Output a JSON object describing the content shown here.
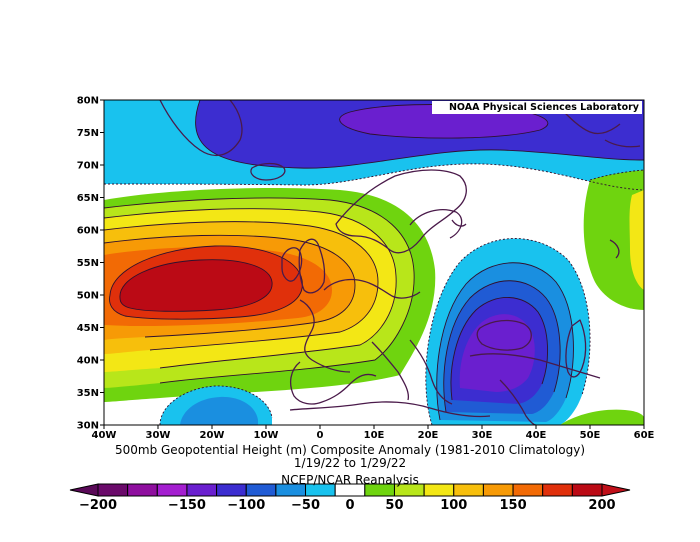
{
  "credit": "NOAA Physical Sciences Laboratory",
  "title_line1": "500mb Geopotential Height (m) Composite Anomaly (1981-2010 Climatology)",
  "title_line2": "1/19/22  to 1/29/22",
  "source": "NCEP/NCAR Reanalysis",
  "lat_labels": [
    "80N",
    "75N",
    "70N",
    "65N",
    "60N",
    "55N",
    "50N",
    "45N",
    "40N",
    "35N",
    "30N"
  ],
  "lon_labels": [
    "40W",
    "30W",
    "20W",
    "10W",
    "0",
    "10E",
    "20E",
    "30E",
    "40E",
    "50E",
    "60E"
  ],
  "colorbar": {
    "labels": [
      "-200",
      "-150",
      "-100",
      "-50",
      "0",
      "50",
      "100",
      "150",
      "200"
    ],
    "levels": [
      -200,
      -175,
      -150,
      -125,
      -100,
      -75,
      -50,
      -25,
      25,
      50,
      75,
      100,
      125,
      150,
      175,
      200
    ],
    "colors": [
      "#6a0a6a",
      "#8f0f9f",
      "#a41ed0",
      "#6a1fcf",
      "#3c2dd0",
      "#205bd4",
      "#1a8fe0",
      "#19c2ee",
      "#ffffff",
      "#6fd40f",
      "#b8e61a",
      "#f3e715",
      "#f7bf0c",
      "#f79a06",
      "#f26a05",
      "#e0300b",
      "#bb0a15"
    ],
    "under_color": "#5a0a58",
    "over_color": "#c0101a"
  },
  "colors": {
    "coastline": "#4a1a4a",
    "contour": "#30102e"
  }
}
